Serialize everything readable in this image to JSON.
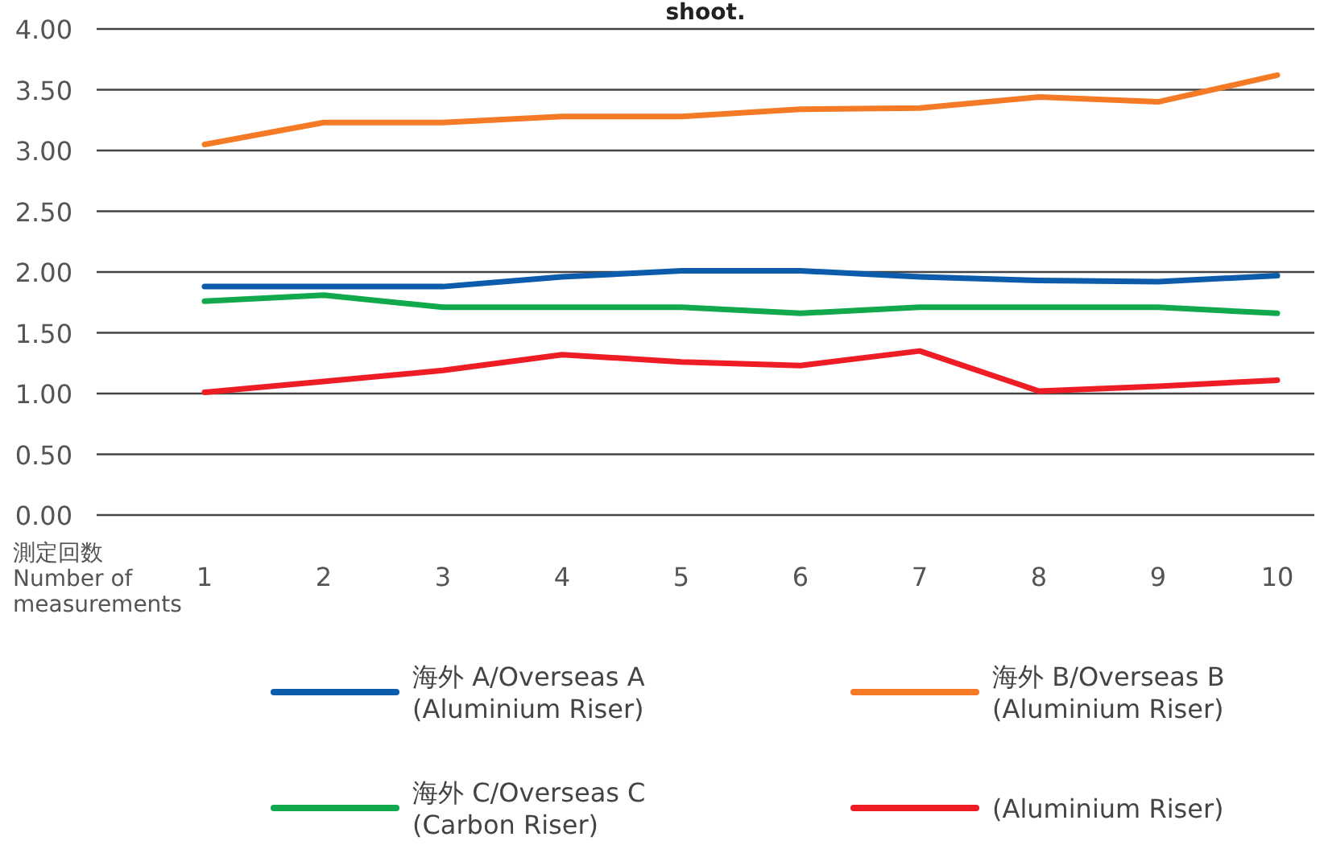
{
  "chart_data": {
    "type": "line",
    "title": "shoot.",
    "xlabel": "測定回数\nNumber of\nmeasurements",
    "categories": [
      "1",
      "2",
      "3",
      "4",
      "5",
      "6",
      "7",
      "8",
      "9",
      "10"
    ],
    "series": [
      {
        "name": "海外 A/Overseas A (Aluminium Riser)",
        "color": "#0d5bab",
        "values": [
          1.88,
          1.88,
          1.88,
          1.96,
          2.01,
          2.01,
          1.96,
          1.93,
          1.92,
          1.97
        ]
      },
      {
        "name": "海外 B/Overseas B (Aluminium Riser)",
        "color": "#f47a25",
        "values": [
          3.05,
          3.23,
          3.23,
          3.28,
          3.28,
          3.34,
          3.35,
          3.44,
          3.4,
          3.62
        ]
      },
      {
        "name": "海外 C/Overseas C (Carbon Riser)",
        "color": "#12a94c",
        "values": [
          1.76,
          1.81,
          1.71,
          1.71,
          1.71,
          1.66,
          1.71,
          1.71,
          1.71,
          1.66
        ]
      },
      {
        "name": "(Aluminium Riser)",
        "color": "#ee1c25",
        "values": [
          1.01,
          1.1,
          1.19,
          1.32,
          1.26,
          1.23,
          1.35,
          1.02,
          1.06,
          1.11
        ]
      }
    ],
    "ylim": [
      0,
      4
    ],
    "yticks": [
      {
        "value": 0,
        "label": "0.00"
      },
      {
        "value": 0.5,
        "label": "0.50"
      },
      {
        "value": 1,
        "label": "1.00"
      },
      {
        "value": 1.5,
        "label": "1.50"
      },
      {
        "value": 2,
        "label": "2.00"
      },
      {
        "value": 2.5,
        "label": "2.50"
      },
      {
        "value": 3,
        "label": "3.00"
      },
      {
        "value": 3.5,
        "label": "3.50"
      },
      {
        "value": 4,
        "label": "4.00"
      }
    ],
    "grid": "y",
    "legend": "bottom",
    "marker": "none",
    "line_style": "solid"
  }
}
